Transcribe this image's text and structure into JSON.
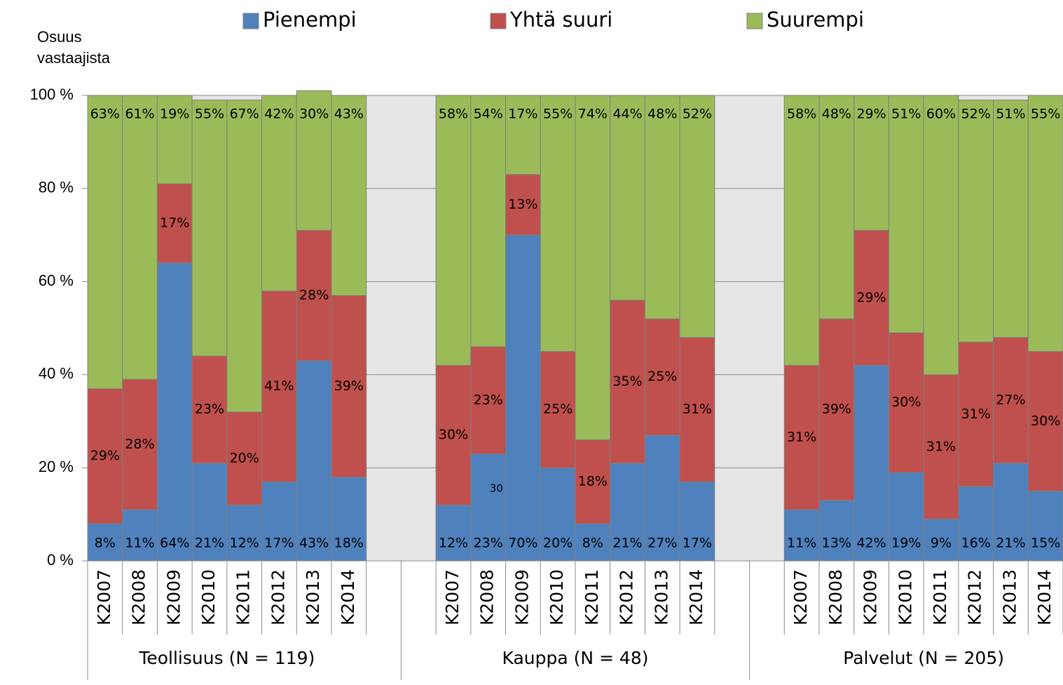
{
  "chart_data": {
    "type": "stacked_bar",
    "ylabel": "Osuus vastaajista",
    "categories": [
      "K2007",
      "K2008",
      "K2009",
      "K2010",
      "K2011",
      "K2012",
      "K2013",
      "K2014",
      null,
      null,
      "K2007",
      "K2008",
      "K2009",
      "K2010",
      "K2011",
      "K2012",
      "K2013",
      "K2014",
      null,
      null,
      "K2007",
      "K2008",
      "K2009",
      "K2010",
      "K2011",
      "K2012",
      "K2013",
      "K2014"
    ],
    "groups": [
      "Teollisuus (N = 119)",
      "Kauppa (N = 48)",
      "Palvelut (N = 205)"
    ],
    "series": [
      {
        "name": "Pienempi",
        "color": "#4f81bd",
        "values": [
          8,
          11,
          64,
          21,
          12,
          17,
          43,
          18,
          null,
          null,
          12,
          23,
          70,
          20,
          8,
          21,
          27,
          17,
          null,
          null,
          11,
          13,
          42,
          19,
          9,
          16,
          21,
          15
        ],
        "value_labels": [
          "8%",
          "11%",
          "64%",
          "21%",
          "12%",
          "17%",
          "43%",
          "18%",
          null,
          null,
          "12%",
          "23%",
          "70%",
          "20%",
          "8%",
          "21%",
          "27%",
          "17%",
          null,
          null,
          "11%",
          "13%",
          "42%",
          "19%",
          "9%",
          "16%",
          "21%",
          "15%"
        ]
      },
      {
        "name": "Yhtä suuri",
        "color": "#c0504d",
        "values": [
          29,
          28,
          17,
          23,
          20,
          41,
          28,
          39,
          null,
          null,
          30,
          23,
          13,
          25,
          18,
          35,
          25,
          31,
          null,
          null,
          31,
          39,
          29,
          30,
          31,
          31,
          27,
          30
        ],
        "value_labels": [
          "29%",
          "28%",
          "17%",
          "23%",
          "20%",
          "41%",
          "28%",
          "39%",
          null,
          null,
          "30%",
          "23%",
          "13%",
          "25%",
          "18%",
          "35%",
          "25%",
          "31%",
          null,
          null,
          "31%",
          "39%",
          "29%",
          "30%",
          "31%",
          "31%",
          "27%",
          "30%"
        ]
      },
      {
        "name": "Suurempi",
        "color": "#9bbb59",
        "values": [
          63,
          61,
          19,
          55,
          67,
          42,
          30,
          43,
          null,
          null,
          58,
          54,
          17,
          55,
          74,
          44,
          48,
          52,
          null,
          null,
          58,
          48,
          29,
          51,
          60,
          52,
          51,
          55
        ],
        "value_labels": [
          "63%",
          "61%",
          "19%",
          "55%",
          "67%",
          "42%",
          "30%",
          "43%",
          null,
          null,
          "58%",
          "54%",
          "17%",
          "55%",
          "74%",
          "44%",
          "48%",
          "52%",
          null,
          null,
          "58%",
          "48%",
          "29%",
          "51%",
          "60%",
          "52%",
          "51%",
          "55%"
        ]
      }
    ],
    "annotations": [
      {
        "text": "30"
      }
    ],
    "ylim": [
      0,
      100
    ],
    "yticks": [
      {
        "value": 0,
        "label": "0 %"
      },
      {
        "value": 20,
        "label": "20 %"
      },
      {
        "value": 40,
        "label": "40 %"
      },
      {
        "value": 60,
        "label": "60 %"
      },
      {
        "value": 80,
        "label": "80 %"
      },
      {
        "value": 100,
        "label": "100 %"
      }
    ],
    "grid": true,
    "legend": "top"
  }
}
